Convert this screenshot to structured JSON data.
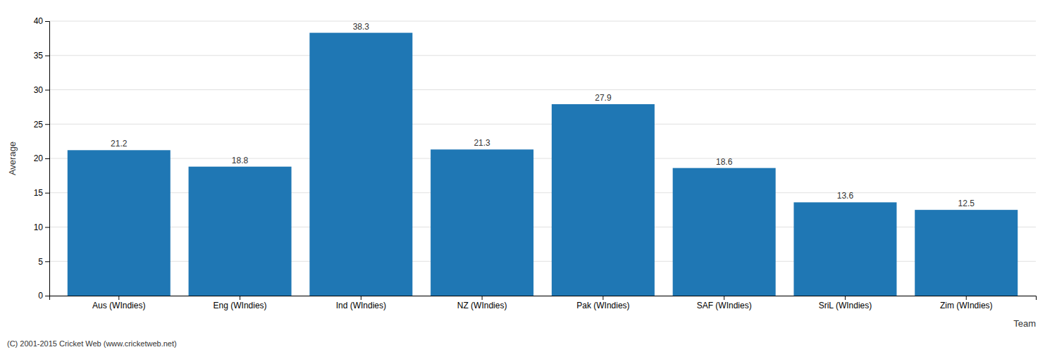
{
  "chart_data": {
    "type": "bar",
    "categories": [
      "Aus (WIndies)",
      "Eng (WIndies)",
      "Ind (WIndies)",
      "NZ (WIndies)",
      "Pak (WIndies)",
      "SAF (WIndies)",
      "SriL (WIndies)",
      "Zim (WIndies)"
    ],
    "values": [
      21.2,
      18.8,
      38.3,
      21.3,
      27.9,
      18.6,
      13.6,
      12.5
    ],
    "xlabel": "Team",
    "ylabel": "Average",
    "ylim": [
      0,
      40
    ],
    "yticks": [
      0,
      5,
      10,
      15,
      20,
      25,
      30,
      35,
      40
    ],
    "grid": true,
    "data_labels": true,
    "annotations": [
      "(C) 2001-2015 Cricket Web (www.cricketweb.net)"
    ]
  }
}
